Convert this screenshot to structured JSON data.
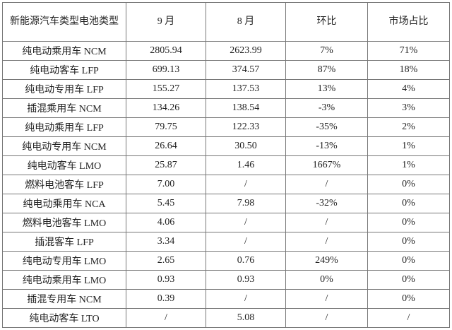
{
  "table": {
    "header": [
      "新能源汽车类型电池类型",
      "9 月",
      "8 月",
      "环比",
      "市场占比"
    ],
    "rows": [
      [
        "纯电动乘用车 NCM",
        "2805.94",
        "2623.99",
        "7%",
        "71%"
      ],
      [
        "纯电动客车 LFP",
        "699.13",
        "374.57",
        "87%",
        "18%"
      ],
      [
        "纯电动专用车 LFP",
        "155.27",
        "137.53",
        "13%",
        "4%"
      ],
      [
        "插混乘用车 NCM",
        "134.26",
        "138.54",
        "-3%",
        "3%"
      ],
      [
        "纯电动乘用车 LFP",
        "79.75",
        "122.33",
        "-35%",
        "2%"
      ],
      [
        "纯电动专用车 NCM",
        "26.64",
        "30.50",
        "-13%",
        "1%"
      ],
      [
        "纯电动客车 LMO",
        "25.87",
        "1.46",
        "1667%",
        "1%"
      ],
      [
        "燃料电池客车 LFP",
        "7.00",
        "/",
        "/",
        "0%"
      ],
      [
        "纯电动乘用车 NCA",
        "5.45",
        "7.98",
        "-32%",
        "0%"
      ],
      [
        "燃料电池客车 LMO",
        "4.06",
        "/",
        "/",
        "0%"
      ],
      [
        "插混客车 LFP",
        "3.34",
        "/",
        "/",
        "0%"
      ],
      [
        "纯电动专用车 LMO",
        "2.65",
        "0.76",
        "249%",
        "0%"
      ],
      [
        "纯电动乘用车 LMO",
        "0.93",
        "0.93",
        "0%",
        "0%"
      ],
      [
        "插混专用车 NCM",
        "0.39",
        "/",
        "/",
        "0%"
      ],
      [
        "纯电动客车 LTO",
        "/",
        "5.08",
        "/",
        "/"
      ]
    ]
  }
}
